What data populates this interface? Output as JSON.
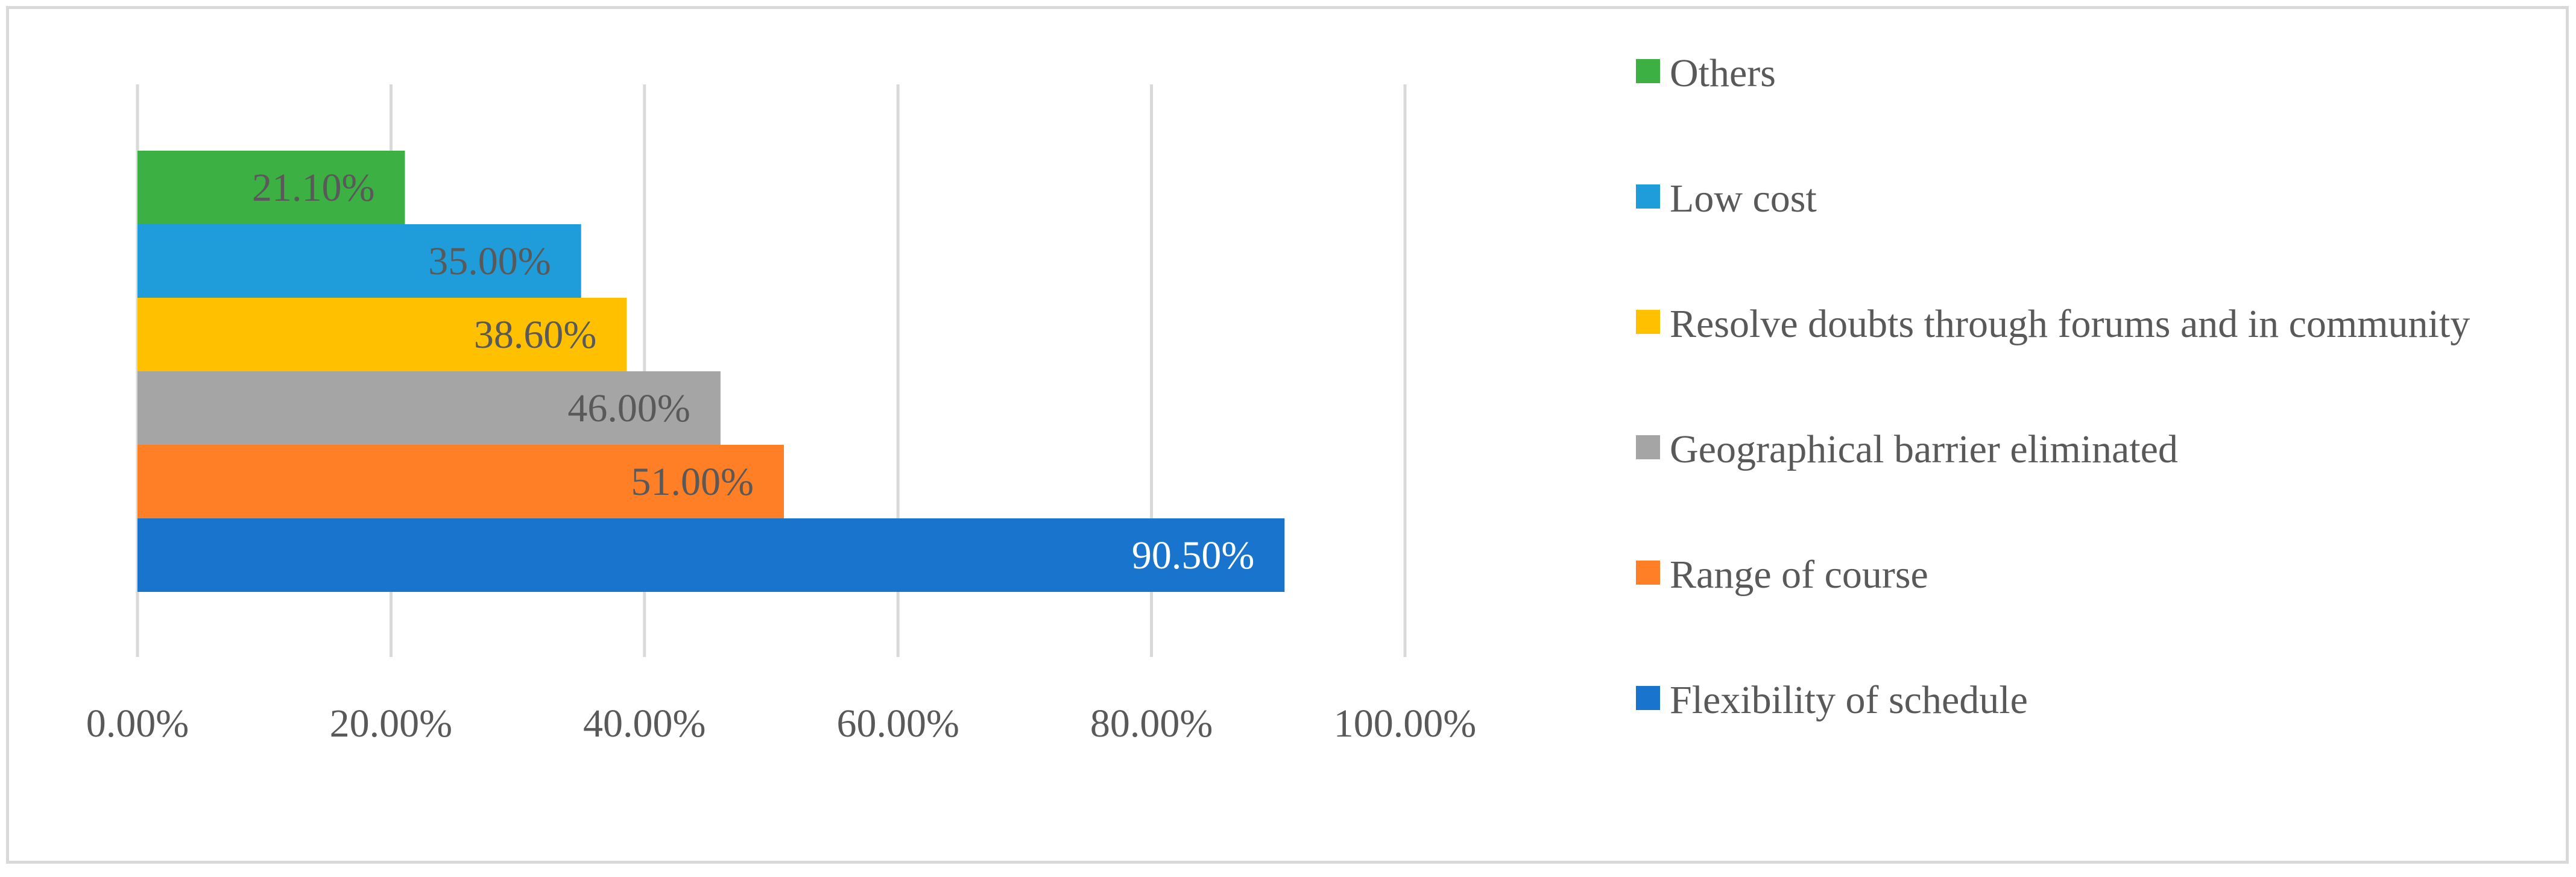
{
  "chart_data": {
    "type": "bar",
    "orientation": "horizontal",
    "title": "",
    "xlabel": "",
    "ylabel": "",
    "xlim": [
      0,
      100
    ],
    "x_ticks": [
      "0.00%",
      "20.00%",
      "40.00%",
      "60.00%",
      "80.00%",
      "100.00%"
    ],
    "grid": "vertical gridlines on",
    "legend_position": "right",
    "categories": [
      "Flexibility of schedule",
      "Range of course",
      "Geographical barrier eliminated",
      "Resolve doubts through forums and in community",
      "Low cost",
      "Others"
    ],
    "values": [
      90.5,
      51.0,
      46.0,
      38.6,
      35.0,
      21.1
    ],
    "data_labels": [
      "90.50%",
      "51.00%",
      "46.00%",
      "38.60%",
      "35.00%",
      "21.10%"
    ],
    "colors": [
      "#1874CD",
      "#FF7F27",
      "#A5A5A5",
      "#FFC000",
      "#1F9DDB",
      "#3CB043"
    ],
    "label_colors": [
      "#ffffff",
      "#595959",
      "#595959",
      "#595959",
      "#595959",
      "#595959"
    ]
  },
  "legend": [
    {
      "label": "Others",
      "color": "#3CB043"
    },
    {
      "label": "Low cost",
      "color": "#1F9DDB"
    },
    {
      "label": "Resolve doubts through forums and in community",
      "color": "#FFC000"
    },
    {
      "label": "Geographical barrier eliminated",
      "color": "#A5A5A5"
    },
    {
      "label": "Range of course",
      "color": "#FF7F27"
    },
    {
      "label": "Flexibility of schedule",
      "color": "#1874CD"
    }
  ]
}
